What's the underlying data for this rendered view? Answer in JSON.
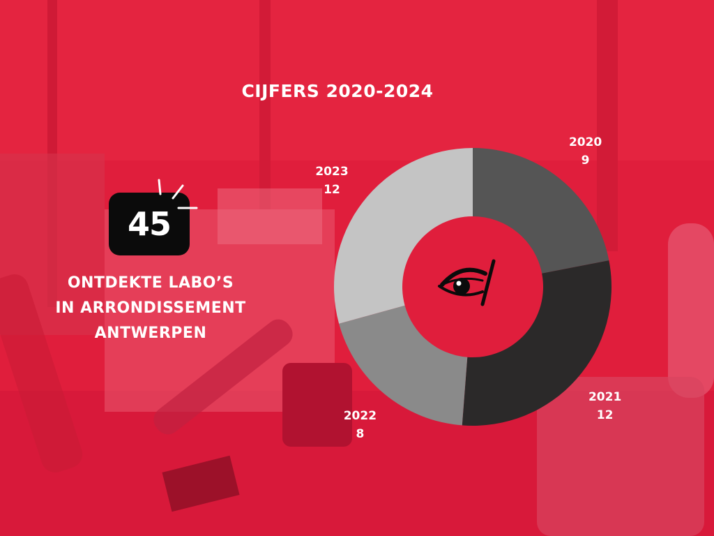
{
  "title": "CIJFERS 2020-2024",
  "stat": {
    "value": "45",
    "caption_lines": [
      "ONTDEKTE LABO’S",
      "IN ARRONDISSEMENT",
      "ANTWERPEN"
    ]
  },
  "colors": {
    "background": "#e01e3c",
    "text": "#ffffff",
    "badge": "#0b0b0b"
  },
  "icon": "eye-icon",
  "chart_data": {
    "type": "pie",
    "title": "CIJFERS 2020-2024",
    "categories": [
      "2020",
      "2021",
      "2022",
      "2023"
    ],
    "values": [
      9,
      12,
      8,
      12
    ],
    "colors": [
      "#555555",
      "#2b2929",
      "#8a8a8a",
      "#c4c4c4"
    ],
    "donut": true,
    "legend": "none"
  }
}
